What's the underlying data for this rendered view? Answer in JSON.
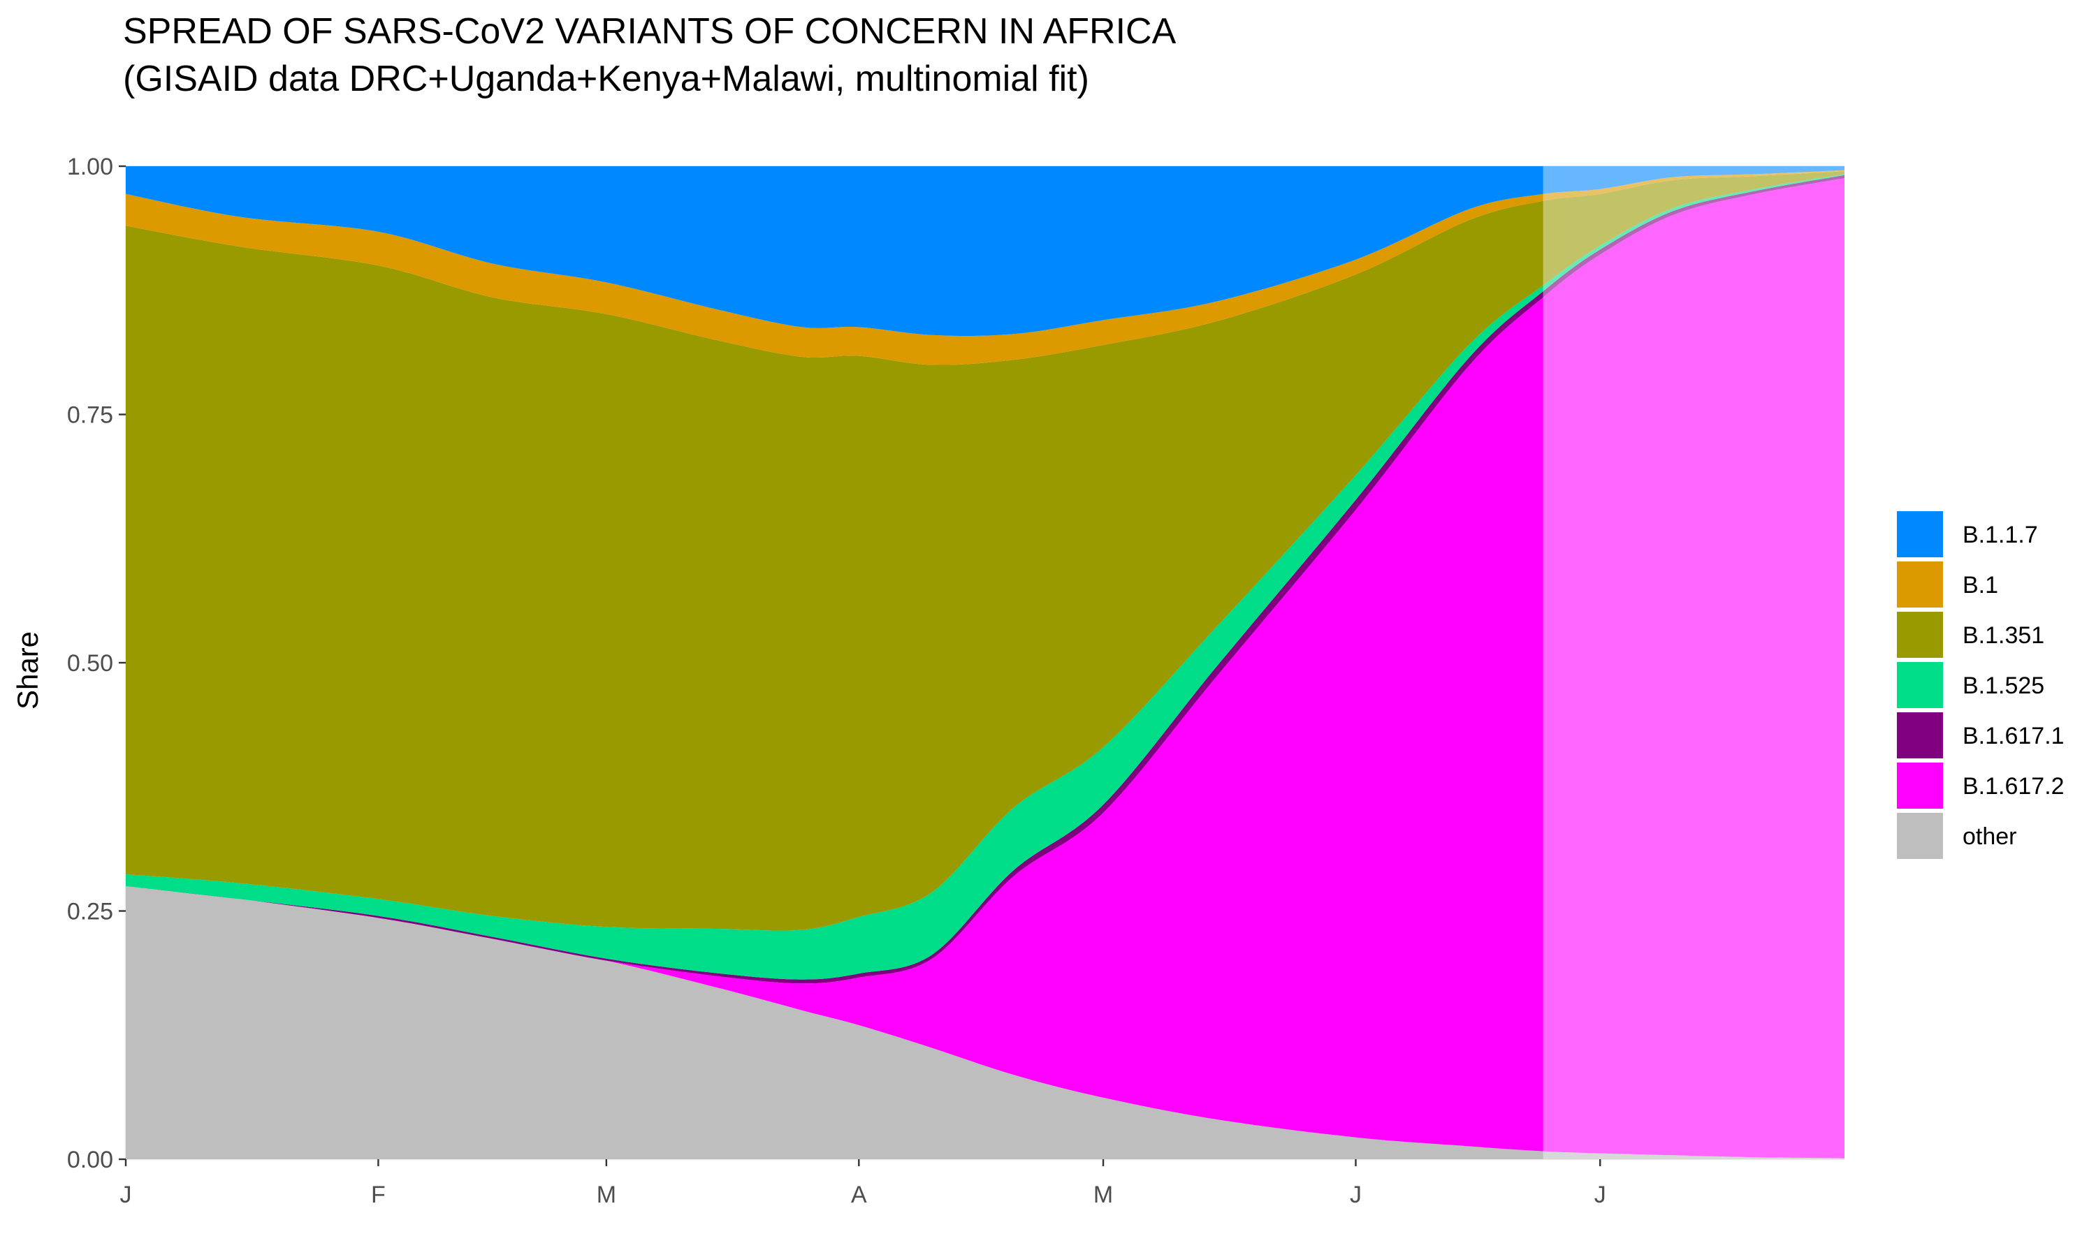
{
  "chart_data": {
    "type": "area",
    "stacked": "fill",
    "title": "SPREAD OF SARS-CoV2 VARIANTS OF CONCERN IN AFRICA",
    "subtitle": "(GISAID data DRC+Uganda+Kenya+Malawi, multinomial fit)",
    "xlabel": "",
    "ylabel": "Share",
    "xlim": [
      "2021-01-01",
      "2021-07-31"
    ],
    "ylim": [
      0,
      1
    ],
    "x_ticks": [
      {
        "date": "2021-01-01",
        "label": "J"
      },
      {
        "date": "2021-02-01",
        "label": "F"
      },
      {
        "date": "2021-03-01",
        "label": "M"
      },
      {
        "date": "2021-04-01",
        "label": "A"
      },
      {
        "date": "2021-05-01",
        "label": "M"
      },
      {
        "date": "2021-06-01",
        "label": "J"
      },
      {
        "date": "2021-07-01",
        "label": "J"
      }
    ],
    "y_ticks": [
      0,
      0.25,
      0.5,
      0.75,
      1
    ],
    "y_tick_labels": [
      "0.00",
      "0.25",
      "0.50",
      "0.75",
      "1.00"
    ],
    "grid": true,
    "legend_position": "right",
    "shaded_forecast_from": "2021-06-24",
    "x": [
      "2021-01-01",
      "2021-01-15",
      "2021-02-01",
      "2021-02-15",
      "2021-03-01",
      "2021-03-15",
      "2021-03-25",
      "2021-04-01",
      "2021-04-10",
      "2021-04-20",
      "2021-05-01",
      "2021-05-15",
      "2021-06-01",
      "2021-06-15",
      "2021-06-24",
      "2021-07-01",
      "2021-07-10",
      "2021-07-20",
      "2021-07-31"
    ],
    "series": [
      {
        "name": "other",
        "color": "#bebebe",
        "values": [
          0.275,
          0.262,
          0.243,
          0.222,
          0.2,
          0.172,
          0.15,
          0.135,
          0.112,
          0.085,
          0.062,
          0.04,
          0.022,
          0.013,
          0.008,
          0.006,
          0.004,
          0.002,
          0.001
        ]
      },
      {
        "name": "B.1.617.2",
        "color": "#ff00ff",
        "values": [
          0.0,
          0.0,
          0.0,
          0.0,
          0.0,
          0.012,
          0.027,
          0.048,
          0.09,
          0.2,
          0.287,
          0.447,
          0.632,
          0.787,
          0.86,
          0.905,
          0.947,
          0.97,
          0.987
        ]
      },
      {
        "name": "B.1.617.1",
        "color": "#800080",
        "values": [
          0.0,
          0.0,
          0.002,
          0.002,
          0.002,
          0.003,
          0.004,
          0.004,
          0.004,
          0.006,
          0.008,
          0.01,
          0.01,
          0.008,
          0.006,
          0.005,
          0.004,
          0.003,
          0.003
        ]
      },
      {
        "name": "B.1.525",
        "color": "#00dd88",
        "values": [
          0.012,
          0.016,
          0.017,
          0.021,
          0.032,
          0.045,
          0.05,
          0.057,
          0.063,
          0.063,
          0.058,
          0.04,
          0.025,
          0.013,
          0.006,
          0.004,
          0.003,
          0.002,
          0.001
        ]
      },
      {
        "name": "B.1.351",
        "color": "#999900",
        "values": [
          0.653,
          0.641,
          0.638,
          0.623,
          0.617,
          0.592,
          0.577,
          0.565,
          0.531,
          0.451,
          0.405,
          0.307,
          0.202,
          0.125,
          0.085,
          0.052,
          0.028,
          0.013,
          0.003
        ]
      },
      {
        "name": "B.1",
        "color": "#dd9900",
        "values": [
          0.032,
          0.03,
          0.034,
          0.034,
          0.032,
          0.031,
          0.03,
          0.029,
          0.03,
          0.026,
          0.025,
          0.02,
          0.015,
          0.011,
          0.007,
          0.005,
          0.003,
          0.002,
          0.001
        ]
      },
      {
        "name": "B.1.1.7",
        "color": "#0088ff",
        "values": [
          0.028,
          0.051,
          0.066,
          0.098,
          0.117,
          0.145,
          0.162,
          0.162,
          0.17,
          0.169,
          0.155,
          0.136,
          0.094,
          0.043,
          0.028,
          0.023,
          0.011,
          0.008,
          0.004
        ]
      }
    ],
    "legend_order": [
      "B.1.1.7",
      "B.1",
      "B.1.351",
      "B.1.525",
      "B.1.617.1",
      "B.1.617.2",
      "other"
    ]
  }
}
